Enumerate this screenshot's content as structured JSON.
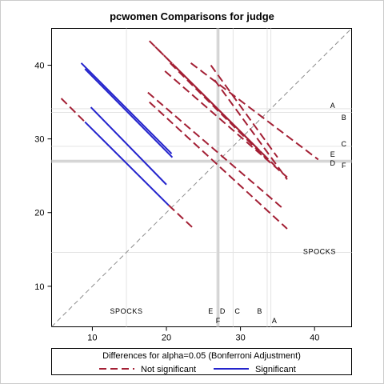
{
  "chart_data": {
    "type": "line",
    "title": "pcwomen Comparisons for judge",
    "xlim": [
      4.5,
      45
    ],
    "ylim": [
      4.5,
      45
    ],
    "x_ticks": [
      10,
      20,
      30,
      40
    ],
    "y_ticks": [
      10,
      20,
      30,
      40
    ],
    "grid": false,
    "reference_line": "y = x, dashed gray",
    "judge_means": [
      {
        "label": "SPOCKS",
        "mean": 14.6
      },
      {
        "label": "F",
        "mean": 26.8
      },
      {
        "label": "E",
        "mean": 26.9
      },
      {
        "label": "D",
        "mean": 27.0
      },
      {
        "label": "C",
        "mean": 29.0
      },
      {
        "label": "B",
        "mean": 33.6
      },
      {
        "label": "A",
        "mean": 34.1
      }
    ],
    "x_axis_labels": [
      {
        "text": "SPOCKS",
        "x": 14.6,
        "row": 1
      },
      {
        "text": "E",
        "x": 26.0,
        "row": 1
      },
      {
        "text": "D",
        "x": 27.6,
        "row": 1
      },
      {
        "text": "C",
        "x": 29.6,
        "row": 1
      },
      {
        "text": "B",
        "x": 32.6,
        "row": 1
      },
      {
        "text": "F",
        "x": 27.0,
        "row": 2
      },
      {
        "text": "A",
        "x": 34.6,
        "row": 2
      }
    ],
    "y_axis_labels": [
      {
        "text": "A",
        "y": 34.5
      },
      {
        "text": "B",
        "y": 32.9
      },
      {
        "text": "C",
        "y": 29.3
      },
      {
        "text": "E",
        "y": 27.9
      },
      {
        "text": "D",
        "y": 26.7
      },
      {
        "text": "F",
        "y": 26.4
      },
      {
        "text": "SPOCKS",
        "y": 14.7
      }
    ],
    "series": [
      {
        "name": "Not significant",
        "color": "#a31f34",
        "dash": "dashed",
        "segments": [
          [
            [
              5.8,
              35.5
            ],
            [
              9.0,
              32.3
            ]
          ],
          [
            [
              20.3,
              21.0
            ],
            [
              23.5,
              18.0
            ]
          ],
          [
            [
              17.7,
              43.3
            ],
            [
              33.3,
              27.7
            ]
          ],
          [
            [
              18.5,
              42.5
            ],
            [
              32.0,
              29.0
            ]
          ],
          [
            [
              20.5,
              40.3
            ],
            [
              34.0,
              26.8
            ]
          ],
          [
            [
              21.5,
              39.5
            ],
            [
              34.7,
              26.3
            ]
          ],
          [
            [
              23.3,
              40.3
            ],
            [
              40.5,
              27.2
            ]
          ],
          [
            [
              26.0,
              40.0
            ],
            [
              35.0,
              27.5
            ]
          ],
          [
            [
              26.5,
              38.0
            ],
            [
              36.3,
              24.5
            ]
          ],
          [
            [
              19.8,
              39.2
            ],
            [
              36.3,
              24.8
            ]
          ],
          [
            [
              17.5,
              36.3
            ],
            [
              35.8,
              20.5
            ]
          ],
          [
            [
              17.7,
              35.0
            ],
            [
              36.3,
              17.8
            ]
          ]
        ]
      },
      {
        "name": "Significant",
        "color": "#2424cc",
        "dash": "solid",
        "segments": [
          [
            [
              9.0,
              32.3
            ],
            [
              20.3,
              21.0
            ]
          ],
          [
            [
              9.8,
              34.3
            ],
            [
              20.0,
              23.8
            ]
          ],
          [
            [
              8.5,
              40.3
            ],
            [
              20.7,
              28.0
            ]
          ],
          [
            [
              9.0,
              39.5
            ],
            [
              20.8,
              27.5
            ]
          ]
        ]
      }
    ],
    "legend": {
      "title": "Differences for alpha=0.05 (Bonferroni Adjustment)",
      "entries": [
        {
          "label": "Not significant",
          "color": "#a31f34",
          "dash": "dashed"
        },
        {
          "label": "Significant",
          "color": "#2424cc",
          "dash": "solid"
        }
      ],
      "position": "bottom"
    }
  }
}
